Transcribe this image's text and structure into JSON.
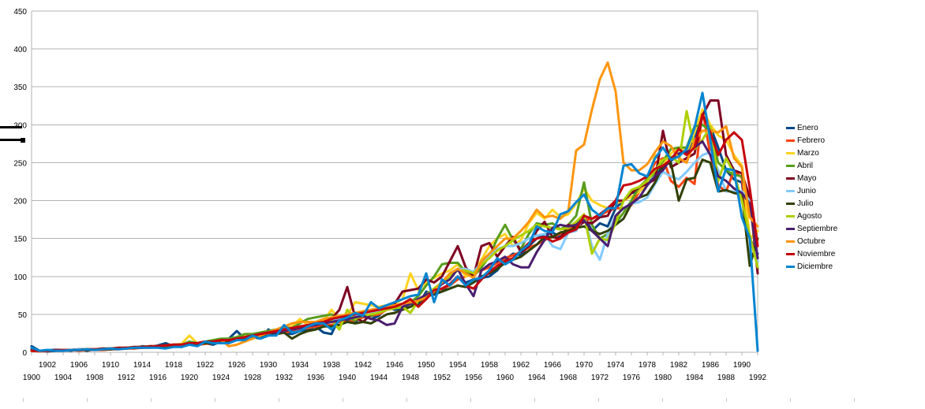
{
  "chart_data": {
    "type": "line",
    "x": [
      1900,
      1901,
      1902,
      1903,
      1904,
      1905,
      1906,
      1907,
      1908,
      1909,
      1910,
      1911,
      1912,
      1913,
      1914,
      1915,
      1916,
      1917,
      1918,
      1919,
      1920,
      1921,
      1922,
      1923,
      1924,
      1925,
      1926,
      1927,
      1928,
      1929,
      1930,
      1931,
      1932,
      1933,
      1934,
      1935,
      1936,
      1937,
      1938,
      1939,
      1940,
      1941,
      1942,
      1943,
      1944,
      1945,
      1946,
      1947,
      1948,
      1949,
      1950,
      1951,
      1952,
      1953,
      1954,
      1955,
      1956,
      1957,
      1958,
      1959,
      1960,
      1961,
      1962,
      1963,
      1964,
      1965,
      1966,
      1967,
      1968,
      1969,
      1970,
      1971,
      1972,
      1973,
      1974,
      1975,
      1976,
      1977,
      1978,
      1979,
      1980,
      1981,
      1982,
      1983,
      1984,
      1985,
      1986,
      1987,
      1988,
      1989,
      1990,
      1991,
      1992
    ],
    "x_ticks_top": [
      "1902",
      "1906",
      "1910",
      "1914",
      "1918",
      "1922",
      "1926",
      "1930",
      "1934",
      "1938",
      "1942",
      "1946",
      "1950",
      "1954",
      "1958",
      "1962",
      "1966",
      "1970",
      "1974",
      "1978",
      "1982",
      "1986",
      "1990"
    ],
    "x_ticks_bottom": [
      "1900",
      "1904",
      "1908",
      "1912",
      "1916",
      "1920",
      "1924",
      "1928",
      "1932",
      "1936",
      "1940",
      "1944",
      "1948",
      "1952",
      "1956",
      "1960",
      "1964",
      "1968",
      "1972",
      "1976",
      "1980",
      "1984",
      "1988",
      "1992"
    ],
    "y_ticks": [
      "0",
      "50",
      "100",
      "150",
      "200",
      "250",
      "300",
      "350",
      "400",
      "450"
    ],
    "ylim": [
      0,
      450
    ],
    "grid": true,
    "legend_position": "right",
    "series": [
      {
        "name": "Enero",
        "color": "#004586",
        "values": [
          8,
          2,
          1,
          2,
          3,
          2,
          4,
          2,
          4,
          3,
          4,
          5,
          6,
          5,
          8,
          7,
          9,
          12,
          8,
          7,
          12,
          9,
          12,
          10,
          14,
          18,
          28,
          18,
          20,
          18,
          30,
          24,
          26,
          24,
          28,
          30,
          34,
          26,
          24,
          46,
          42,
          40,
          48,
          44,
          48,
          60,
          56,
          58,
          64,
          62,
          80,
          76,
          80,
          90,
          100,
          92,
          96,
          98,
          100,
          108,
          122,
          130,
          128,
          140,
          150,
          155,
          158,
          152,
          162,
          168,
          180,
          160,
          170,
          166,
          190,
          200,
          210,
          212,
          222,
          232,
          246,
          252,
          262,
          264,
          280,
          312,
          298,
          270,
          240,
          228,
          224,
          150,
          130
        ]
      },
      {
        "name": "Febrero",
        "color": "#ff420e",
        "values": [
          2,
          1,
          2,
          2,
          2,
          3,
          2,
          3,
          3,
          3,
          4,
          4,
          5,
          5,
          6,
          6,
          8,
          7,
          8,
          8,
          10,
          10,
          11,
          12,
          14,
          15,
          17,
          18,
          20,
          22,
          24,
          24,
          26,
          28,
          30,
          32,
          34,
          36,
          36,
          40,
          40,
          42,
          46,
          48,
          50,
          56,
          58,
          60,
          64,
          68,
          76,
          80,
          84,
          88,
          96,
          100,
          104,
          108,
          112,
          118,
          124,
          128,
          132,
          138,
          142,
          148,
          152,
          156,
          162,
          168,
          174,
          176,
          180,
          186,
          190,
          190,
          194,
          212,
          230,
          250,
          256,
          226,
          218,
          230,
          222,
          320,
          260,
          220,
          212,
          240,
          230,
          150,
          120
        ]
      },
      {
        "name": "Marzo",
        "color": "#ffd320",
        "values": [
          3,
          2,
          2,
          3,
          3,
          3,
          4,
          4,
          4,
          5,
          5,
          6,
          6,
          7,
          7,
          8,
          8,
          9,
          10,
          11,
          22,
          12,
          14,
          16,
          16,
          18,
          20,
          22,
          24,
          26,
          28,
          30,
          32,
          34,
          44,
          36,
          38,
          42,
          56,
          44,
          48,
          66,
          64,
          62,
          60,
          62,
          64,
          70,
          104,
          82,
          92,
          98,
          104,
          108,
          116,
          100,
          104,
          122,
          140,
          150,
          156,
          140,
          148,
          170,
          184,
          176,
          188,
          178,
          182,
          196,
          216,
          200,
          194,
          190,
          196,
          200,
          205,
          212,
          222,
          260,
          248,
          262,
          270,
          264,
          290,
          320,
          300,
          286,
          280,
          260,
          246,
          150,
          160
        ]
      },
      {
        "name": "Abril",
        "color": "#579d1c",
        "values": [
          2,
          2,
          2,
          3,
          3,
          3,
          4,
          4,
          4,
          4,
          5,
          5,
          6,
          6,
          7,
          7,
          8,
          9,
          10,
          10,
          14,
          12,
          14,
          16,
          18,
          18,
          20,
          24,
          24,
          26,
          28,
          30,
          32,
          32,
          38,
          44,
          46,
          48,
          50,
          44,
          46,
          42,
          50,
          48,
          54,
          58,
          60,
          58,
          66,
          74,
          88,
          100,
          116,
          118,
          118,
          106,
          100,
          112,
          126,
          150,
          168,
          148,
          136,
          156,
          170,
          168,
          170,
          162,
          168,
          180,
          224,
          168,
          150,
          156,
          170,
          184,
          200,
          218,
          228,
          236,
          252,
          268,
          270,
          270,
          298,
          300,
          292,
          250,
          240,
          234,
          232,
          200,
          110
        ]
      },
      {
        "name": "Mayo",
        "color": "#7e0021",
        "values": [
          4,
          2,
          2,
          3,
          3,
          3,
          4,
          4,
          4,
          5,
          5,
          6,
          6,
          7,
          7,
          8,
          8,
          9,
          10,
          10,
          12,
          12,
          14,
          14,
          16,
          16,
          18,
          20,
          22,
          24,
          26,
          28,
          30,
          32,
          34,
          36,
          38,
          40,
          44,
          56,
          86,
          46,
          40,
          50,
          52,
          58,
          64,
          80,
          82,
          84,
          96,
          92,
          100,
          120,
          140,
          112,
          100,
          140,
          144,
          126,
          140,
          152,
          132,
          140,
          160,
          172,
          152,
          150,
          168,
          164,
          172,
          170,
          178,
          180,
          200,
          200,
          210,
          218,
          222,
          228,
          292,
          244,
          250,
          256,
          262,
          312,
          332,
          332,
          260,
          240,
          236,
          204,
          104
        ]
      },
      {
        "name": "Junio",
        "color": "#83caff",
        "values": [
          3,
          2,
          3,
          4,
          3,
          3,
          4,
          4,
          4,
          4,
          5,
          5,
          6,
          6,
          7,
          7,
          8,
          9,
          10,
          10,
          12,
          12,
          14,
          14,
          16,
          16,
          18,
          20,
          22,
          24,
          26,
          28,
          30,
          32,
          34,
          36,
          38,
          40,
          42,
          44,
          46,
          48,
          50,
          52,
          54,
          56,
          58,
          60,
          64,
          68,
          76,
          84,
          92,
          100,
          110,
          110,
          106,
          118,
          128,
          136,
          140,
          140,
          144,
          150,
          154,
          156,
          140,
          136,
          158,
          160,
          180,
          140,
          122,
          156,
          180,
          190,
          196,
          198,
          204,
          222,
          238,
          232,
          228,
          238,
          250,
          260,
          264,
          240,
          212,
          212,
          212,
          200,
          120
        ]
      },
      {
        "name": "Julio",
        "color": "#314004",
        "values": [
          3,
          2,
          2,
          2,
          3,
          3,
          3,
          3,
          4,
          4,
          4,
          5,
          5,
          6,
          6,
          7,
          7,
          8,
          9,
          10,
          10,
          11,
          12,
          12,
          14,
          14,
          16,
          18,
          20,
          22,
          22,
          24,
          26,
          18,
          24,
          28,
          30,
          34,
          34,
          36,
          40,
          38,
          40,
          38,
          44,
          50,
          52,
          56,
          60,
          66,
          72,
          78,
          80,
          84,
          88,
          86,
          92,
          100,
          104,
          110,
          118,
          122,
          126,
          134,
          142,
          152,
          152,
          158,
          160,
          164,
          166,
          160,
          156,
          160,
          168,
          176,
          196,
          204,
          208,
          224,
          246,
          250,
          200,
          228,
          230,
          254,
          250,
          212,
          214,
          210,
          208,
          114,
          150
        ]
      },
      {
        "name": "Agosto",
        "color": "#aecf00",
        "values": [
          2,
          2,
          2,
          3,
          3,
          3,
          3,
          4,
          4,
          4,
          5,
          5,
          6,
          6,
          7,
          7,
          8,
          9,
          10,
          10,
          12,
          12,
          14,
          14,
          16,
          16,
          18,
          20,
          22,
          24,
          26,
          26,
          28,
          30,
          34,
          36,
          38,
          40,
          42,
          30,
          56,
          44,
          48,
          50,
          52,
          56,
          58,
          60,
          52,
          68,
          76,
          84,
          92,
          100,
          108,
          108,
          104,
          116,
          124,
          134,
          140,
          148,
          154,
          160,
          168,
          166,
          164,
          162,
          164,
          172,
          182,
          130,
          150,
          148,
          170,
          200,
          214,
          218,
          226,
          240,
          254,
          258,
          250,
          318,
          268,
          280,
          298,
          226,
          256,
          236,
          200,
          154,
          112
        ]
      },
      {
        "name": "Septiembre",
        "color": "#4b1f6f",
        "values": [
          2,
          2,
          2,
          3,
          3,
          3,
          3,
          4,
          4,
          4,
          5,
          5,
          6,
          6,
          7,
          7,
          8,
          9,
          10,
          10,
          12,
          12,
          14,
          14,
          16,
          16,
          18,
          20,
          22,
          24,
          26,
          26,
          28,
          30,
          32,
          34,
          36,
          38,
          40,
          42,
          44,
          46,
          48,
          44,
          42,
          36,
          38,
          60,
          64,
          70,
          76,
          80,
          90,
          96,
          110,
          90,
          74,
          108,
          116,
          120,
          126,
          116,
          112,
          112,
          132,
          148,
          164,
          168,
          166,
          168,
          174,
          160,
          150,
          140,
          180,
          190,
          196,
          204,
          220,
          232,
          240,
          256,
          262,
          264,
          270,
          278,
          260,
          232,
          226,
          216,
          210,
          196,
          124
        ]
      },
      {
        "name": "Octubre",
        "color": "#ff950e",
        "values": [
          2,
          2,
          2,
          3,
          3,
          3,
          3,
          4,
          4,
          4,
          5,
          5,
          6,
          6,
          7,
          7,
          8,
          9,
          10,
          10,
          12,
          12,
          14,
          14,
          16,
          8,
          10,
          14,
          18,
          22,
          26,
          30,
          34,
          38,
          40,
          40,
          40,
          44,
          46,
          48,
          50,
          52,
          54,
          56,
          58,
          60,
          62,
          64,
          66,
          68,
          72,
          80,
          92,
          104,
          110,
          104,
          98,
          120,
          130,
          140,
          150,
          150,
          160,
          172,
          188,
          178,
          180,
          176,
          186,
          266,
          274,
          320,
          360,
          382,
          344,
          250,
          240,
          240,
          248,
          264,
          278,
          272,
          256,
          250,
          280,
          292,
          292,
          290,
          298,
          256,
          244,
          178,
          166
        ]
      },
      {
        "name": "Noviembre",
        "color": "#c5000b",
        "values": [
          2,
          2,
          2,
          3,
          3,
          3,
          3,
          4,
          4,
          4,
          5,
          5,
          6,
          6,
          7,
          7,
          8,
          9,
          10,
          10,
          12,
          12,
          14,
          14,
          16,
          16,
          18,
          20,
          22,
          24,
          26,
          28,
          30,
          32,
          34,
          36,
          38,
          40,
          44,
          46,
          48,
          50,
          52,
          54,
          56,
          58,
          60,
          64,
          70,
          60,
          70,
          82,
          84,
          90,
          100,
          88,
          84,
          96,
          106,
          114,
          120,
          124,
          134,
          144,
          150,
          152,
          146,
          150,
          158,
          162,
          180,
          176,
          182,
          190,
          200,
          220,
          222,
          226,
          232,
          242,
          246,
          254,
          268,
          260,
          270,
          314,
          290,
          260,
          280,
          290,
          280,
          216,
          140
        ]
      },
      {
        "name": "Diciembre",
        "color": "#0084d1",
        "values": [
          6,
          2,
          3,
          2,
          2,
          3,
          3,
          4,
          3,
          4,
          5,
          4,
          5,
          6,
          6,
          6,
          6,
          5,
          7,
          7,
          10,
          8,
          14,
          12,
          12,
          12,
          16,
          16,
          22,
          18,
          22,
          22,
          36,
          26,
          28,
          34,
          38,
          38,
          30,
          42,
          46,
          52,
          48,
          66,
          58,
          62,
          66,
          70,
          74,
          76,
          104,
          66,
          96,
          88,
          100,
          88,
          96,
          98,
          108,
          124,
          116,
          122,
          134,
          142,
          166,
          160,
          158,
          182,
          186,
          198,
          208,
          188,
          180,
          190,
          190,
          246,
          248,
          236,
          232,
          256,
          270,
          254,
          258,
          268,
          296,
          342,
          280,
          212,
          242,
          240,
          178,
          150,
          2
        ]
      }
    ]
  }
}
